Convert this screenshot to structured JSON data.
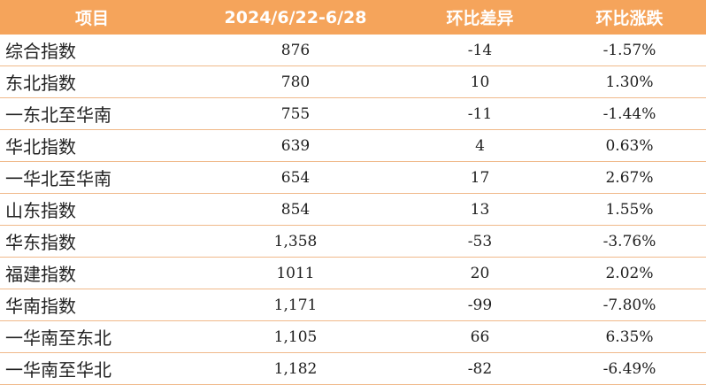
{
  "table": {
    "headers": [
      "项目",
      "2024/6/22-6/28",
      "环比差异",
      "环比涨跌"
    ],
    "rows": [
      {
        "name": "综合指数",
        "value": "876",
        "diff": "-14",
        "pct": "-1.57%"
      },
      {
        "name": "东北指数",
        "value": "780",
        "diff": "10",
        "pct": "1.30%"
      },
      {
        "name": "一东北至华南",
        "value": "755",
        "diff": "-11",
        "pct": "-1.44%"
      },
      {
        "name": "华北指数",
        "value": "639",
        "diff": "4",
        "pct": "0.63%"
      },
      {
        "name": "一华北至华南",
        "value": "654",
        "diff": "17",
        "pct": "2.67%"
      },
      {
        "name": "山东指数",
        "value": "854",
        "diff": "13",
        "pct": "1.55%"
      },
      {
        "name": "华东指数",
        "value": "1,358",
        "diff": "-53",
        "pct": "-3.76%"
      },
      {
        "name": "福建指数",
        "value": "1011",
        "diff": "20",
        "pct": "2.02%"
      },
      {
        "name": "华南指数",
        "value": "1,171",
        "diff": "-99",
        "pct": "-7.80%"
      },
      {
        "name": "一华南至东北",
        "value": "1,105",
        "diff": "66",
        "pct": "6.35%"
      },
      {
        "name": "一华南至华北",
        "value": "1,182",
        "diff": "-82",
        "pct": "-6.49%"
      }
    ]
  },
  "colors": {
    "header_bg": "#f5a45b",
    "header_text": "#ffffff",
    "row_border": "#f0b98a"
  }
}
